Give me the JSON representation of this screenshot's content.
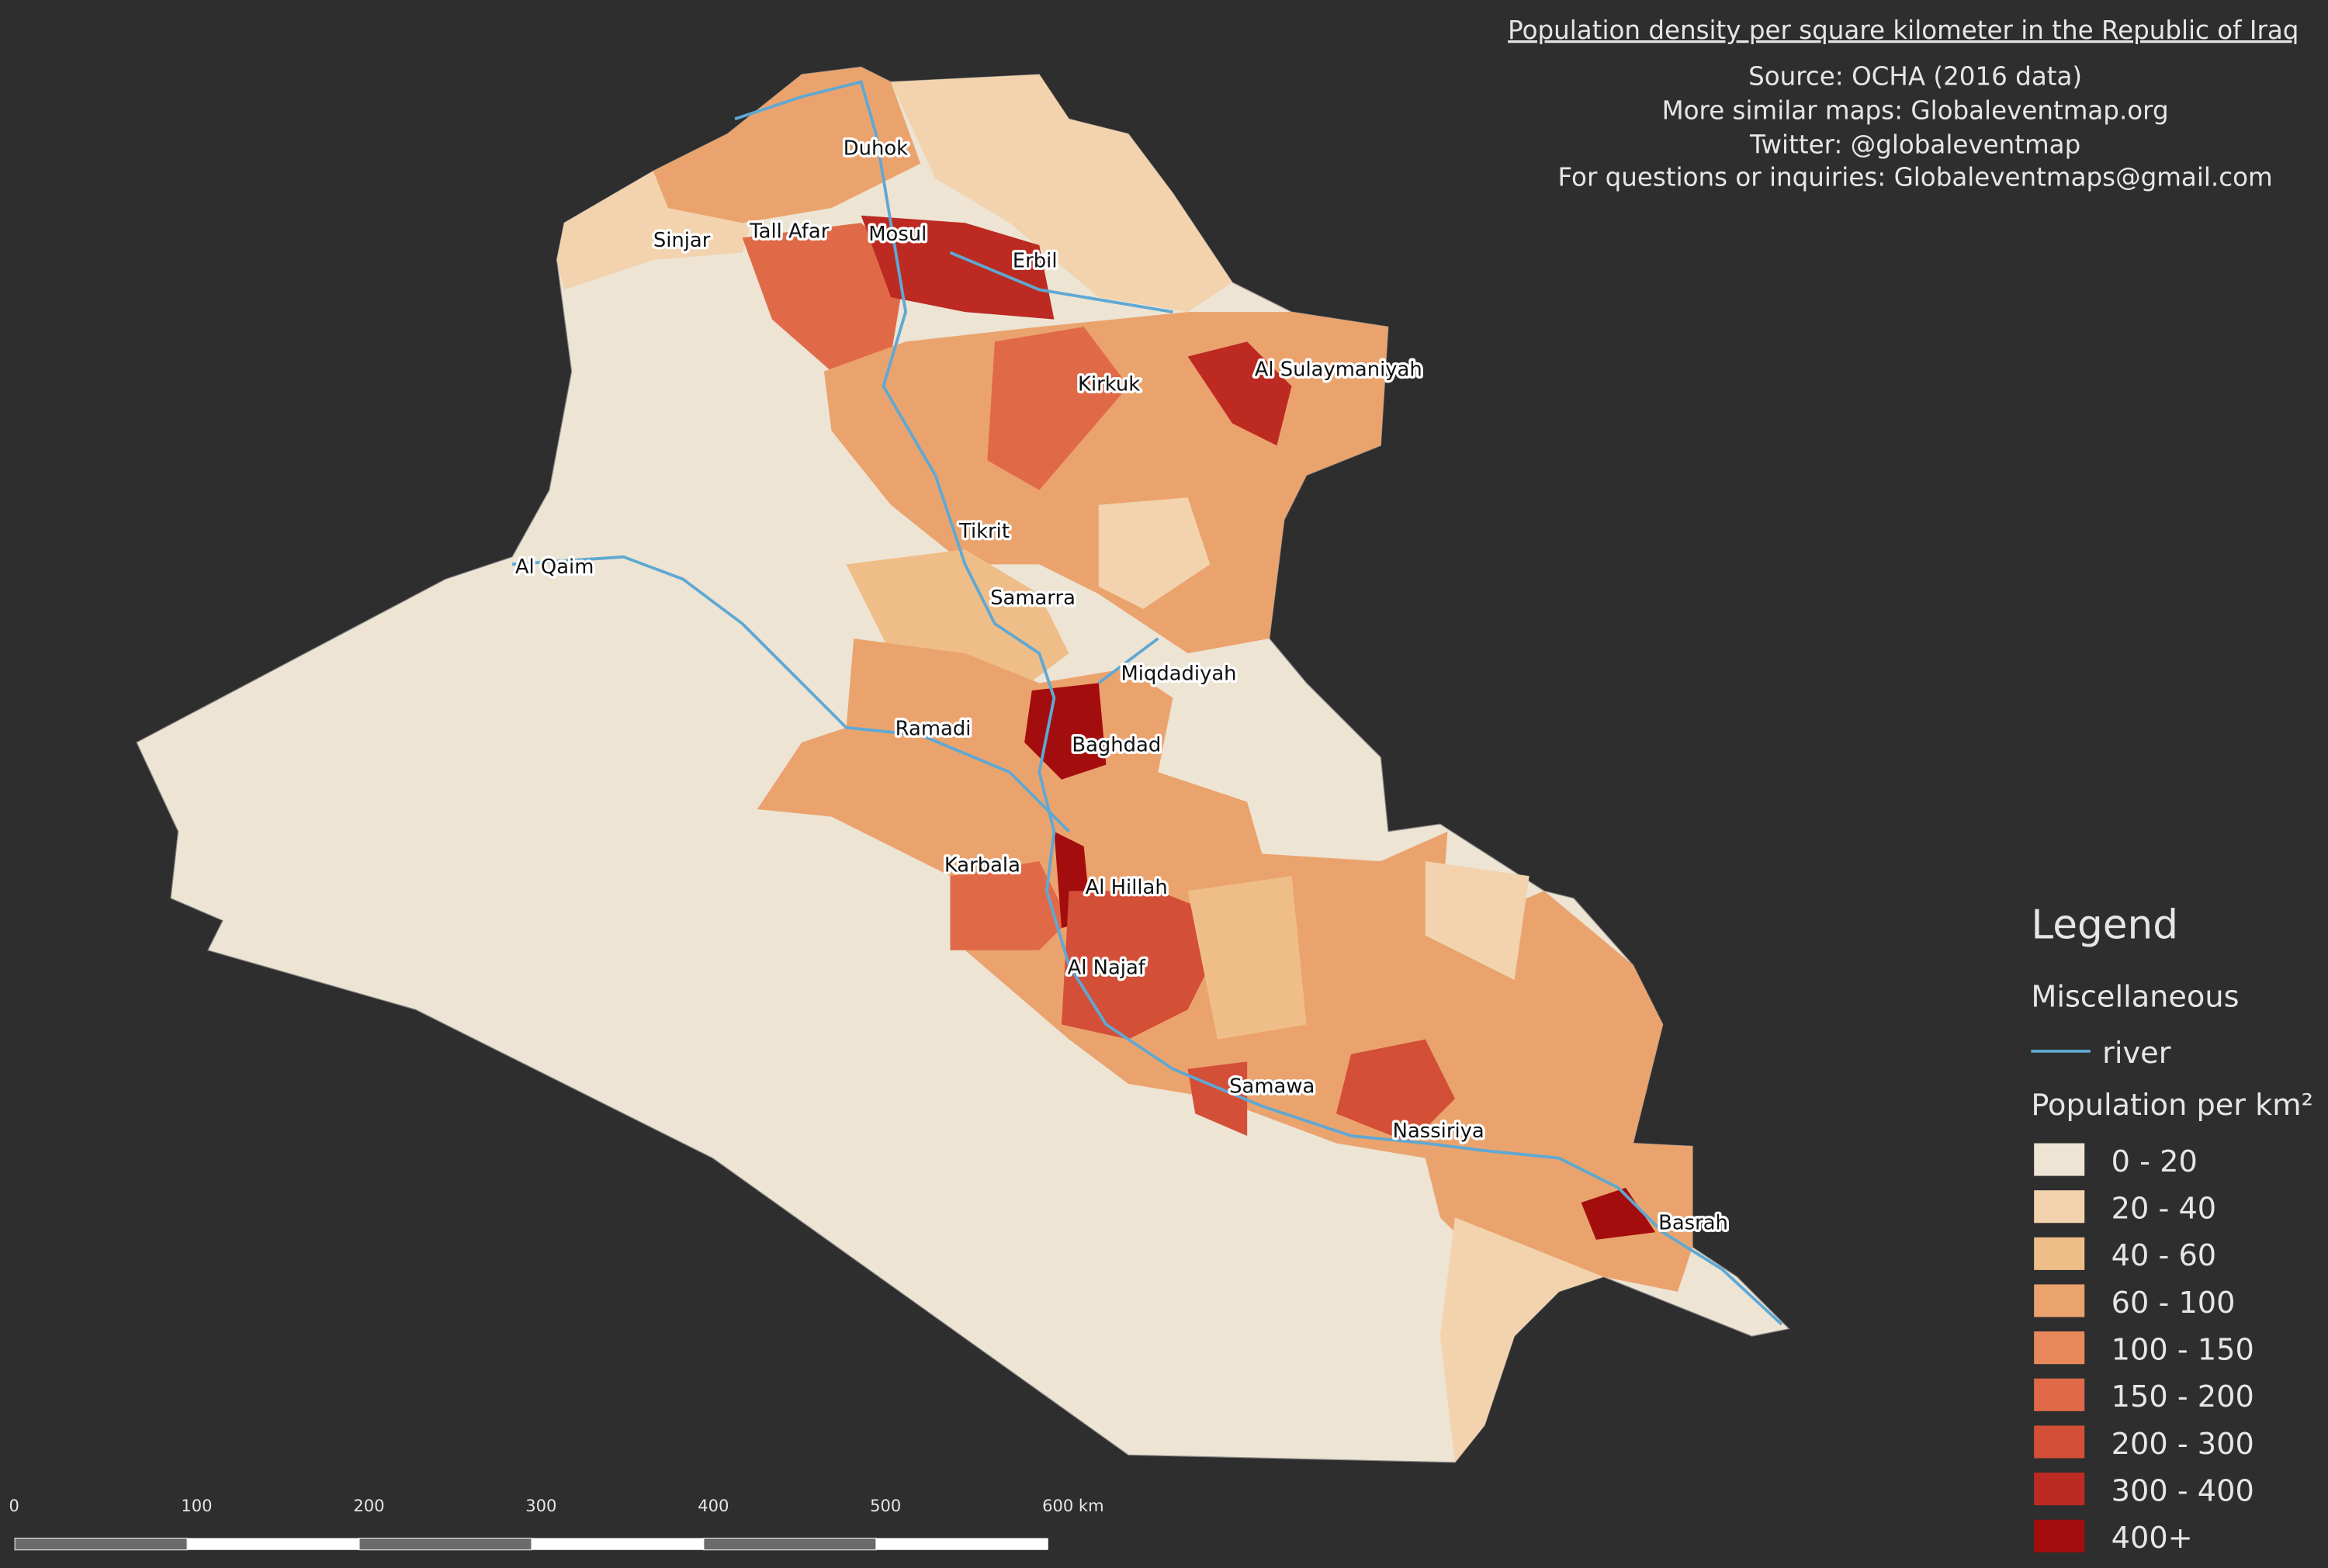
{
  "header": {
    "title": "Population density per square kilometer in the Republic of Iraq",
    "lines": [
      "Source: OCHA (2016 data)",
      "More similar maps: Globaleventmap.org",
      "Twitter: @globaleventmap",
      "For questions or inquiries: Globaleventmaps@gmail.com"
    ]
  },
  "cities": [
    "Duhok",
    "Sinjar",
    "Tall Afar",
    "Mosul",
    "Erbil",
    "Al Sulaymaniyah",
    "Kirkuk",
    "Tikrit",
    "Al Qaim",
    "Samarra",
    "Miqdadiyah",
    "Ramadi",
    "Baghdad",
    "Karbala",
    "Al Hillah",
    "Al Najaf",
    "Samawa",
    "Nassiriya",
    "Basrah"
  ],
  "legend": {
    "title": "Legend",
    "group": "Miscellaneous",
    "river": {
      "label": "river",
      "color": "#5fa8d3"
    },
    "density_title": "Population per km²",
    "classes": [
      {
        "label": "0 - 20",
        "color": "#ede4d4"
      },
      {
        "label": "20 - 40",
        "color": "#f2d3ae"
      },
      {
        "label": "40 - 60",
        "color": "#efbe88"
      },
      {
        "label": "60 - 100",
        "color": "#eba36d"
      },
      {
        "label": "100 - 150",
        "color": "#e8895b"
      },
      {
        "label": "150 - 200",
        "color": "#e06a48"
      },
      {
        "label": "200 - 300",
        "color": "#d34f38"
      },
      {
        "label": "300 - 400",
        "color": "#bc2a22"
      },
      {
        "label": "400+",
        "color": "#a30d0d"
      }
    ]
  },
  "scale_bar": [
    "0",
    "100",
    "200",
    "300",
    "400",
    "500",
    "600 km"
  ]
}
